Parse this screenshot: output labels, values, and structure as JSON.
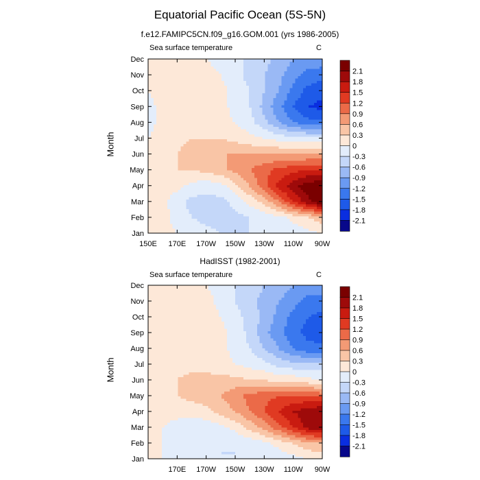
{
  "title": "Equatorial Pacific Ocean (5S-5N)",
  "colors": [
    "#08088a",
    "#0a2ee0",
    "#1e5ae8",
    "#3a78ee",
    "#6a9af2",
    "#9ab9f5",
    "#c4d7f9",
    "#e3edfb",
    "#fde8d8",
    "#f9c5a6",
    "#f39a75",
    "#eb6a48",
    "#e03a22",
    "#c91b10",
    "#9e0a0a",
    "#7a0000"
  ],
  "chart_data": [
    {
      "type": "heatmap",
      "title": "f.e12.FAMIPC5CN.f09_g16.GOM.001 (yrs 1986-2005)",
      "left_label": "Sea surface temperature",
      "units": "C",
      "ylabel": "Month",
      "xticks": [
        "150E",
        "170E",
        "170W",
        "150W",
        "130W",
        "110W",
        "90W"
      ],
      "yticks": [
        "Jan",
        "Feb",
        "Mar",
        "Apr",
        "May",
        "Jun",
        "Jul",
        "Aug",
        "Sep",
        "Oct",
        "Nov",
        "Dec"
      ],
      "colorbar_labels": [
        "2.1",
        "1.8",
        "1.5",
        "1.2",
        "0.9",
        "0.6",
        "0.3",
        "0",
        "-0.3",
        "-0.6",
        "-0.9",
        "-1.2",
        "-1.5",
        "-1.8",
        "-2.1"
      ],
      "longitudes": [
        150,
        160,
        170,
        180,
        190,
        200,
        210,
        220,
        230,
        240,
        250,
        260,
        270
      ],
      "months": [
        "Jan",
        "Feb",
        "Mar",
        "Apr",
        "May",
        "Jun",
        "Jul",
        "Aug",
        "Sep",
        "Oct",
        "Nov",
        "Dec"
      ],
      "values": [
        [
          0.1,
          0.1,
          0.0,
          -0.1,
          -0.2,
          -0.3,
          -0.3,
          -0.3,
          -0.3,
          -0.3,
          -0.2,
          -0.1,
          0.0
        ],
        [
          0.2,
          0.1,
          -0.1,
          -0.3,
          -0.4,
          -0.4,
          -0.4,
          -0.3,
          -0.2,
          -0.1,
          0.1,
          0.3,
          0.5
        ],
        [
          0.2,
          0.1,
          -0.2,
          -0.4,
          -0.4,
          -0.4,
          -0.2,
          0.1,
          0.4,
          0.9,
          1.5,
          2.0,
          2.4
        ],
        [
          0.2,
          0.1,
          0.1,
          -0.1,
          -0.2,
          -0.1,
          0.2,
          0.6,
          1.1,
          1.6,
          2.0,
          2.3,
          2.4
        ],
        [
          0.1,
          0.2,
          0.3,
          0.3,
          0.4,
          0.5,
          0.7,
          0.9,
          1.1,
          1.3,
          1.4,
          1.5,
          1.5
        ],
        [
          0.1,
          0.2,
          0.3,
          0.5,
          0.6,
          0.6,
          0.6,
          0.6,
          0.6,
          0.6,
          0.6,
          0.6,
          0.6
        ],
        [
          0.0,
          0.1,
          0.2,
          0.3,
          0.3,
          0.3,
          0.2,
          0.1,
          0.0,
          -0.1,
          -0.2,
          -0.2,
          -0.2
        ],
        [
          -0.1,
          0.1,
          0.2,
          0.2,
          0.2,
          0.1,
          0.0,
          -0.2,
          -0.5,
          -0.9,
          -1.2,
          -1.4,
          -1.4
        ],
        [
          -0.1,
          0.1,
          0.2,
          0.3,
          0.2,
          0.1,
          -0.1,
          -0.3,
          -0.7,
          -1.1,
          -1.5,
          -1.8,
          -1.9
        ],
        [
          0.0,
          0.1,
          0.2,
          0.2,
          0.2,
          0.1,
          -0.1,
          -0.3,
          -0.6,
          -0.9,
          -1.3,
          -1.6,
          -1.7
        ],
        [
          0.1,
          0.1,
          0.2,
          0.2,
          0.1,
          0.0,
          -0.2,
          -0.4,
          -0.6,
          -0.8,
          -1.1,
          -1.3,
          -1.4
        ],
        [
          0.1,
          0.1,
          0.1,
          0.1,
          0.0,
          -0.1,
          -0.2,
          -0.4,
          -0.5,
          -0.7,
          -0.9,
          -1.0,
          -1.0
        ]
      ]
    },
    {
      "type": "heatmap",
      "title": "HadISST (1982-2001)",
      "left_label": "Sea surface temperature",
      "units": "C",
      "ylabel": "Month",
      "xticks": [
        "170E",
        "170W",
        "150W",
        "130W",
        "110W",
        "90W"
      ],
      "yticks": [
        "Jan",
        "Feb",
        "Mar",
        "Apr",
        "May",
        "Jun",
        "Jul",
        "Aug",
        "Sep",
        "Oct",
        "Nov",
        "Dec"
      ],
      "colorbar_labels": [
        "2.1",
        "1.8",
        "1.5",
        "1.2",
        "0.9",
        "0.6",
        "0.3",
        "0",
        "-0.3",
        "-0.6",
        "-0.9",
        "-1.2",
        "-1.5",
        "-1.8",
        "-2.1"
      ],
      "longitudes": [
        150,
        160,
        170,
        180,
        190,
        200,
        210,
        220,
        230,
        240,
        250,
        260,
        270
      ],
      "months": [
        "Jan",
        "Feb",
        "Mar",
        "Apr",
        "May",
        "Jun",
        "Jul",
        "Aug",
        "Sep",
        "Oct",
        "Nov",
        "Dec"
      ],
      "values": [
        [
          0.1,
          0.0,
          -0.1,
          -0.2,
          -0.2,
          -0.3,
          -0.3,
          -0.3,
          -0.2,
          -0.2,
          -0.1,
          0.0,
          0.1
        ],
        [
          0.1,
          0.0,
          -0.1,
          -0.3,
          -0.3,
          -0.3,
          -0.3,
          -0.2,
          -0.1,
          0.1,
          0.3,
          0.5,
          0.6
        ],
        [
          0.1,
          0.0,
          -0.1,
          -0.2,
          -0.2,
          -0.1,
          0.1,
          0.4,
          0.7,
          1.1,
          1.5,
          1.9,
          2.1
        ],
        [
          0.1,
          0.1,
          0.1,
          0.1,
          0.2,
          0.4,
          0.6,
          0.9,
          1.2,
          1.5,
          1.8,
          2.0,
          2.1
        ],
        [
          0.1,
          0.2,
          0.3,
          0.4,
          0.5,
          0.6,
          0.8,
          1.0,
          1.1,
          1.2,
          1.2,
          1.2,
          1.1
        ],
        [
          0.1,
          0.2,
          0.3,
          0.4,
          0.4,
          0.4,
          0.4,
          0.3,
          0.3,
          0.2,
          0.2,
          0.1,
          0.0
        ],
        [
          0.0,
          0.1,
          0.2,
          0.2,
          0.2,
          0.1,
          0.0,
          -0.1,
          -0.2,
          -0.4,
          -0.5,
          -0.5,
          -0.5
        ],
        [
          0.0,
          0.1,
          0.2,
          0.2,
          0.2,
          0.1,
          -0.1,
          -0.3,
          -0.6,
          -0.9,
          -1.2,
          -1.4,
          -1.4
        ],
        [
          0.0,
          0.1,
          0.2,
          0.3,
          0.2,
          0.1,
          -0.1,
          -0.4,
          -0.8,
          -1.1,
          -1.4,
          -1.6,
          -1.7
        ],
        [
          0.0,
          0.1,
          0.2,
          0.2,
          0.2,
          0.0,
          -0.2,
          -0.4,
          -0.7,
          -1.0,
          -1.3,
          -1.5,
          -1.6
        ],
        [
          0.1,
          0.1,
          0.2,
          0.1,
          0.1,
          -0.1,
          -0.3,
          -0.5,
          -0.7,
          -0.9,
          -1.1,
          -1.3,
          -1.3
        ],
        [
          0.1,
          0.1,
          0.1,
          0.1,
          0.0,
          -0.1,
          -0.3,
          -0.4,
          -0.6,
          -0.7,
          -0.9,
          -1.0,
          -1.0
        ]
      ]
    }
  ]
}
